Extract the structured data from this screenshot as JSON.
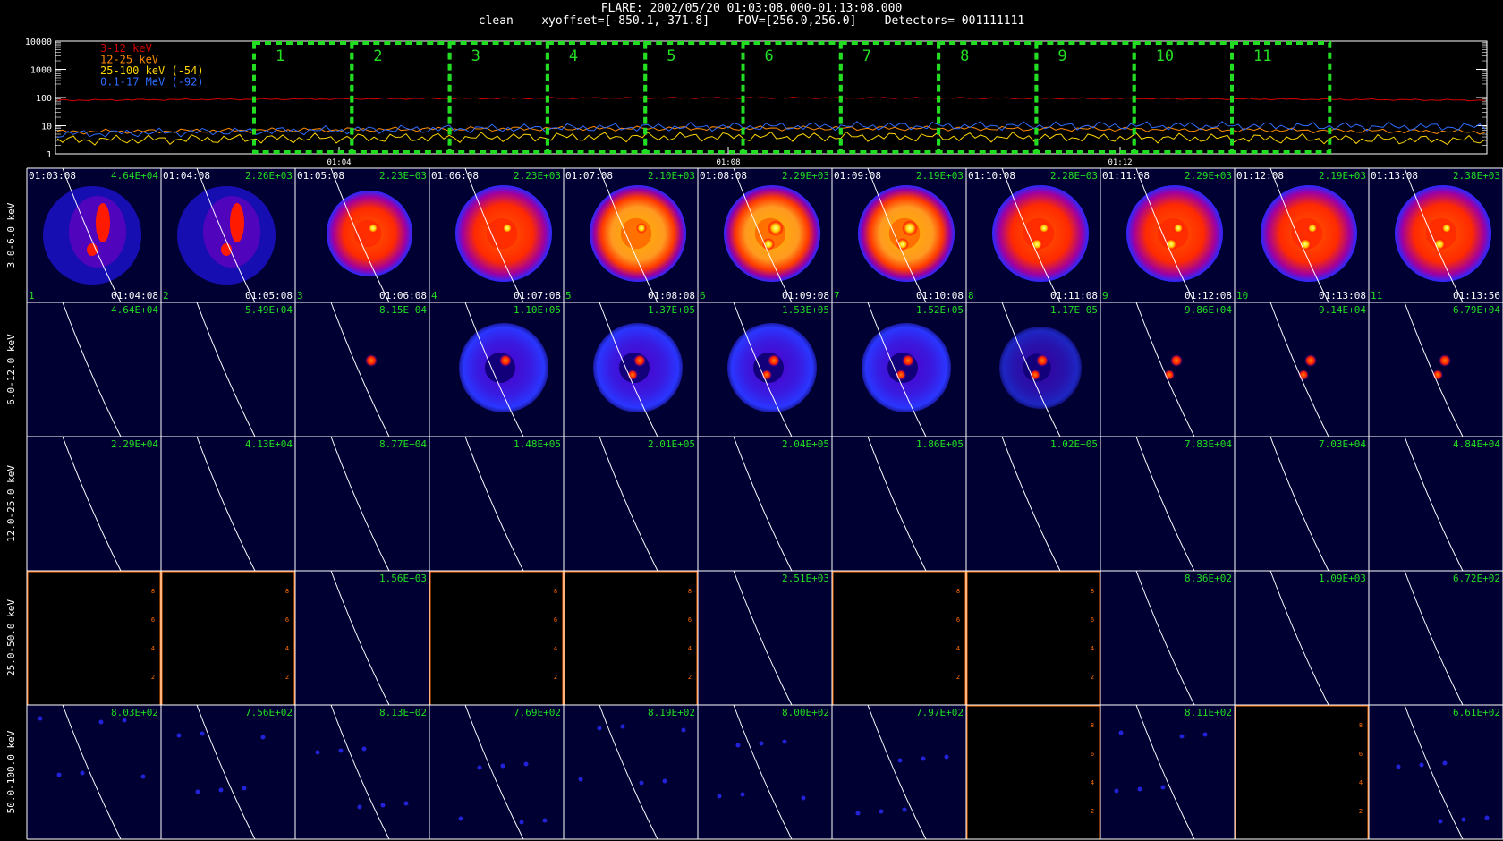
{
  "header": {
    "title_line1": "FLARE: 2002/05/20 01:03:08.000-01:13:08.000",
    "title_line2": "clean    xyoffset=[-850.1,-371.8]    FOV=[256.0,256.0]    Detectors= 001111111"
  },
  "chart_data": [
    {
      "type": "line",
      "yscale": "log",
      "ylim": [
        1,
        10000
      ],
      "yticks": [
        "10000",
        "1000",
        "100",
        "10",
        "1"
      ],
      "xticks": [
        "01:04",
        "01:08",
        "01:12"
      ],
      "series": [
        {
          "name": "3-12 keV",
          "color": "#d40000",
          "level": 80
        },
        {
          "name": "12-25 keV",
          "color": "#ff8c00",
          "level": 6
        },
        {
          "name": "25-100 keV (-54)",
          "color": "#ffd700",
          "level": 3
        },
        {
          "name": "0.1-17 MeV (-92)",
          "color": "#2e6bff",
          "level": 5
        }
      ],
      "intervals": [
        "1",
        "2",
        "3",
        "4",
        "5",
        "6",
        "7",
        "8",
        "9",
        "10",
        "11"
      ],
      "interval_color": "#22dd22"
    },
    {
      "type": "heatmap",
      "rows": [
        "3.0-6.0 keV",
        "6.0-12.0 keV",
        "12.0-25.0 keV",
        "25.0-50.0 keV",
        "50.0-100.0 keV"
      ],
      "start_times": [
        "01:03:08",
        "01:04:08",
        "01:05:08",
        "01:06:08",
        "01:07:08",
        "01:08:08",
        "01:09:08",
        "01:10:08",
        "01:11:08",
        "01:12:08",
        "01:13:08"
      ],
      "end_times": [
        "01:04:08",
        "01:05:08",
        "01:06:08",
        "01:07:08",
        "01:08:08",
        "01:09:08",
        "01:10:08",
        "01:11:08",
        "01:12:08",
        "01:13:08",
        "01:13:56"
      ],
      "intervals": [
        "1",
        "2",
        "3",
        "4",
        "5",
        "6",
        "7",
        "8",
        "9",
        "10",
        "11"
      ],
      "peaks": [
        [
          "4.64E+04",
          "2.26E+03",
          "2.23E+03",
          "2.23E+03",
          "2.10E+03",
          "2.29E+03",
          "2.19E+03",
          "2.28E+03",
          "2.29E+03",
          "2.19E+03",
          "2.38E+03"
        ],
        [
          "4.64E+04",
          "5.49E+04",
          "8.15E+04",
          "1.10E+05",
          "1.37E+05",
          "1.53E+05",
          "1.52E+05",
          "1.17E+05",
          "9.86E+04",
          "9.14E+04",
          "6.79E+04"
        ],
        [
          "2.29E+04",
          "4.13E+04",
          "8.77E+04",
          "1.48E+05",
          "2.01E+05",
          "2.04E+05",
          "1.86E+05",
          "1.02E+05",
          "7.83E+04",
          "7.03E+04",
          "4.84E+04"
        ],
        [
          "",
          "",
          "1.56E+03",
          "",
          "",
          "2.51E+03",
          "",
          "",
          "8.36E+02",
          "1.09E+03",
          "6.72E+02"
        ],
        [
          "8.03E+02",
          "7.56E+02",
          "8.13E+02",
          "7.69E+02",
          "8.19E+02",
          "8.00E+02",
          "7.97E+02",
          "",
          "8.11E+02",
          "",
          "6.61E+02"
        ]
      ],
      "empty_axis_ticks": [
        "2",
        "4",
        "6",
        "8"
      ]
    }
  ],
  "colors": {
    "tick_text": "#22dd22",
    "empty_axis": "#ff6a00",
    "panel_bg": "#000033",
    "limb": "#ffffff"
  }
}
